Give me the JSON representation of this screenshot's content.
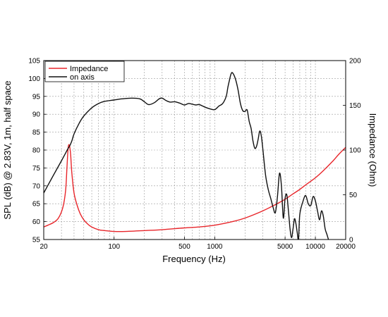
{
  "chart_data": {
    "type": "line",
    "x_scale": "log",
    "xlim": [
      20,
      20000
    ],
    "ylim_left": [
      55,
      105
    ],
    "ylim_right": [
      0,
      200
    ],
    "xlabel": "Frequency (Hz)",
    "ylabel_left": "SPL (dB) @ 2.83V, 1m, half space",
    "ylabel_right": "Impedance (Ohm)",
    "x_ticks": [
      20,
      100,
      500,
      1000,
      5000,
      10000,
      20000
    ],
    "x_tick_labels": [
      "20",
      "100",
      "500",
      "1000",
      "5000",
      "10000",
      "20000"
    ],
    "y_left_ticks": [
      55,
      60,
      65,
      70,
      75,
      80,
      85,
      90,
      95,
      100,
      105
    ],
    "y_left_tick_labels": [
      "55",
      "60",
      "65",
      "70",
      "75",
      "80",
      "85",
      "90",
      "95",
      "100",
      "105"
    ],
    "y_right_ticks": [
      0,
      50,
      100,
      150,
      200
    ],
    "y_right_tick_labels": [
      "0",
      "50",
      "100",
      "150",
      "200"
    ],
    "grid": true,
    "legend_position": "top-left",
    "series": [
      {
        "name": "Impedance",
        "axis": "right",
        "color": "#e8262b",
        "x": [
          20,
          22,
          25,
          28,
          31,
          33,
          34,
          35,
          36,
          37,
          38,
          40,
          43,
          46,
          50,
          55,
          60,
          70,
          80,
          100,
          130,
          200,
          300,
          500,
          700,
          1000,
          1500,
          2000,
          3000,
          4000,
          5000,
          6000,
          7000,
          8000,
          10000,
          12000,
          15000,
          17000,
          20000
        ],
        "y": [
          14,
          16,
          19,
          24,
          36,
          55,
          80,
          103,
          105,
          95,
          75,
          52,
          38,
          29,
          22,
          17,
          14,
          11,
          10,
          9,
          9,
          10,
          11,
          13,
          14,
          16,
          20,
          24,
          32,
          39,
          45,
          51,
          56,
          61,
          69,
          77,
          88,
          95,
          103
        ]
      },
      {
        "name": "on axis",
        "axis": "left",
        "color": "#111111",
        "x": [
          20,
          25,
          30,
          35,
          36,
          38,
          40,
          45,
          50,
          60,
          70,
          80,
          100,
          120,
          150,
          180,
          200,
          220,
          250,
          280,
          300,
          330,
          360,
          400,
          450,
          500,
          550,
          600,
          650,
          700,
          800,
          900,
          1000,
          1100,
          1200,
          1300,
          1350,
          1400,
          1450,
          1500,
          1600,
          1700,
          1800,
          1900,
          2000,
          2100,
          2200,
          2300,
          2400,
          2500,
          2600,
          2700,
          2800,
          2900,
          3000,
          3200,
          3400,
          3600,
          3800,
          4000,
          4200,
          4400,
          4600,
          4800,
          5000,
          5200,
          5400,
          5600,
          5800,
          6000,
          6200,
          6400,
          6600,
          6800,
          7000,
          7500,
          8000,
          8500,
          9000,
          9500,
          10000,
          10500,
          11000,
          11500,
          12000,
          12500,
          13000,
          13500,
          14000
        ],
        "y": [
          68,
          73,
          77,
          80.5,
          81,
          82.5,
          84.5,
          87.5,
          89.5,
          91.8,
          93,
          93.6,
          94,
          94.3,
          94.5,
          94.3,
          93.5,
          92.7,
          93.2,
          94.3,
          94.5,
          93.8,
          93.4,
          93.5,
          93.1,
          92.6,
          93.0,
          92.8,
          92.6,
          92.7,
          92.0,
          91.5,
          91.3,
          92.3,
          93.0,
          95.0,
          97.5,
          99.5,
          101.2,
          101.6,
          100.0,
          97.0,
          93.0,
          91.0,
          90.8,
          91.2,
          88.0,
          86.0,
          82.5,
          80.5,
          81.0,
          83.0,
          85.3,
          84.0,
          80.5,
          73.0,
          69.0,
          66.5,
          64.0,
          62.5,
          67.0,
          73.5,
          70.0,
          61.0,
          66.5,
          67.5,
          63.0,
          58.0,
          55.5,
          58.0,
          60.8,
          59.5,
          57.0,
          55.0,
          62.0,
          65.5,
          67.3,
          65.0,
          64.5,
          67.0,
          65.8,
          63.0,
          60.5,
          63.0,
          61.5,
          58.0,
          56.5,
          55.0,
          54.0
        ]
      }
    ]
  }
}
